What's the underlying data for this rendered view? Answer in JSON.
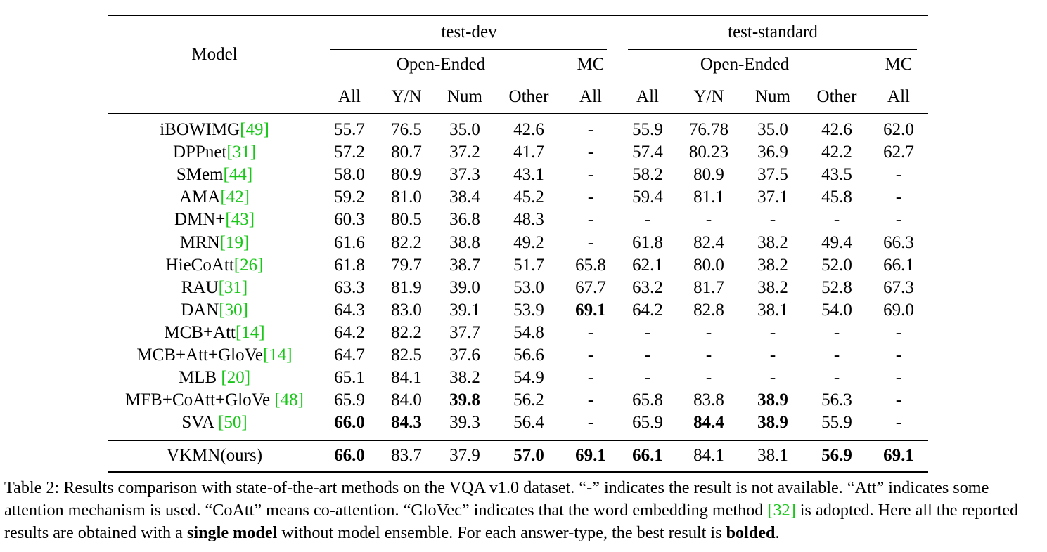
{
  "table": {
    "model_header": "Model",
    "groups": {
      "test_dev": "test-dev",
      "test_standard": "test-standard"
    },
    "subgroups": {
      "open_ended": "Open-Ended",
      "mc": "MC"
    },
    "columns": [
      "All",
      "Y/N",
      "Num",
      "Other",
      "All",
      "All",
      "Y/N",
      "Num",
      "Other",
      "All"
    ],
    "rows": [
      {
        "name": "iBOWIMG",
        "cite": "[49]",
        "values": [
          "55.7",
          "76.5",
          "35.0",
          "42.6",
          "-",
          "55.9",
          "76.78",
          "35.0",
          "42.6",
          "62.0"
        ],
        "bold": []
      },
      {
        "name": "DPPnet",
        "cite": "[31]",
        "values": [
          "57.2",
          "80.7",
          "37.2",
          "41.7",
          "-",
          "57.4",
          "80.23",
          "36.9",
          "42.2",
          "62.7"
        ],
        "bold": []
      },
      {
        "name": "SMem",
        "cite": "[44]",
        "values": [
          "58.0",
          "80.9",
          "37.3",
          "43.1",
          "-",
          "58.2",
          "80.9",
          "37.5",
          "43.5",
          "-"
        ],
        "bold": []
      },
      {
        "name": "AMA",
        "cite": "[42]",
        "values": [
          "59.2",
          "81.0",
          "38.4",
          "45.2",
          "-",
          "59.4",
          "81.1",
          "37.1",
          "45.8",
          "-"
        ],
        "bold": []
      },
      {
        "name": "DMN+",
        "cite": "[43]",
        "values": [
          "60.3",
          "80.5",
          "36.8",
          "48.3",
          "-",
          "-",
          "-",
          "-",
          "-",
          "-"
        ],
        "bold": []
      },
      {
        "name": "MRN",
        "cite": "[19]",
        "values": [
          "61.6",
          "82.2",
          "38.8",
          "49.2",
          "-",
          "61.8",
          "82.4",
          "38.2",
          "49.4",
          "66.3"
        ],
        "bold": []
      },
      {
        "name": "HieCoAtt",
        "cite": "[26]",
        "values": [
          "61.8",
          "79.7",
          "38.7",
          "51.7",
          "65.8",
          "62.1",
          "80.0",
          "38.2",
          "52.0",
          "66.1"
        ],
        "bold": []
      },
      {
        "name": "RAU",
        "cite": "[31]",
        "values": [
          "63.3",
          "81.9",
          "39.0",
          "53.0",
          "67.7",
          "63.2",
          "81.7",
          "38.2",
          "52.8",
          "67.3"
        ],
        "bold": []
      },
      {
        "name": "DAN",
        "cite": "[30]",
        "values": [
          "64.3",
          "83.0",
          "39.1",
          "53.9",
          "69.1",
          "64.2",
          "82.8",
          "38.1",
          "54.0",
          "69.0"
        ],
        "bold": [
          4
        ]
      },
      {
        "name": "MCB+Att",
        "cite": "[14]",
        "values": [
          "64.2",
          "82.2",
          "37.7",
          "54.8",
          "-",
          "-",
          "-",
          "-",
          "-",
          "-"
        ],
        "bold": []
      },
      {
        "name": "MCB+Att+GloVe",
        "cite": "[14]",
        "values": [
          "64.7",
          "82.5",
          "37.6",
          "56.6",
          "-",
          "-",
          "-",
          "-",
          "-",
          "-"
        ],
        "bold": []
      },
      {
        "name": "MLB ",
        "cite": "[20]",
        "values": [
          "65.1",
          "84.1",
          "38.2",
          "54.9",
          "-",
          "-",
          "-",
          "-",
          "-",
          "-"
        ],
        "bold": []
      },
      {
        "name": "MFB+CoAtt+GloVe ",
        "cite": "[48]",
        "values": [
          "65.9",
          "84.0",
          "39.8",
          "56.2",
          "-",
          "65.8",
          "83.8",
          "38.9",
          "56.3",
          "-"
        ],
        "bold": [
          2,
          7
        ]
      },
      {
        "name": "SVA ",
        "cite": "[50]",
        "values": [
          "66.0",
          "84.3",
          "39.3",
          "56.4",
          "-",
          "65.9",
          "84.4",
          "38.9",
          "55.9",
          "-"
        ],
        "bold": [
          0,
          1,
          6,
          7
        ]
      }
    ],
    "final_row": {
      "name": "VKMN(ours)",
      "cite": "",
      "values": [
        "66.0",
        "83.7",
        "37.9",
        "57.0",
        "69.1",
        "66.1",
        "84.1",
        "38.1",
        "56.9",
        "69.1"
      ],
      "bold": [
        0,
        3,
        4,
        5,
        8,
        9
      ]
    }
  },
  "caption": {
    "part1": "Table 2: Results comparison with state-of-the-art methods on the VQA v1.0 dataset. “-” indicates the result is not available. “Att” indicates some attention mechanism is used. “CoAtt” means co-attention. “GloVec” indicates that the word embedding method ",
    "cite": "[32]",
    "part2": " is adopted. Here all the reported results are obtained with a ",
    "bold1": "single model",
    "part3": " without model ensemble. For each answer-type, the best result is ",
    "bold2": "bolded",
    "part4": "."
  }
}
